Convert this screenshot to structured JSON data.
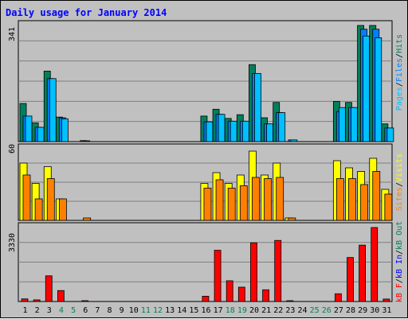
{
  "title": "Daily usage for January 2014",
  "colors": {
    "frame_bg": "#c0c0c0",
    "plot_bg": "#c0c0c0",
    "title": "#0000ff",
    "grid": "#808080",
    "weekday_tick": "#000000",
    "weekend_tick": "#00805c",
    "hits": "#00805c",
    "files": "#0080ff",
    "pages": "#00c0ff",
    "visits": "#ffff00",
    "sites": "#ff8000",
    "kb_out": "#00805c",
    "kb_in": "#0000ff",
    "kb_f": "#ff0000"
  },
  "chart_data": [
    {
      "type": "bar",
      "name": "hits-files-pages",
      "categories": [
        "1",
        "2",
        "3",
        "4",
        "5",
        "6",
        "7",
        "8",
        "9",
        "10",
        "11",
        "12",
        "13",
        "14",
        "15",
        "16",
        "17",
        "18",
        "19",
        "20",
        "21",
        "22",
        "23",
        "24",
        "25",
        "26",
        "27",
        "28",
        "29",
        "30",
        "31"
      ],
      "weekend_days": [
        "4",
        "5",
        "11",
        "12",
        "18",
        "19",
        "25",
        "26"
      ],
      "ymax_label": "341",
      "ylim": [
        0,
        341
      ],
      "legend": [
        "Pages",
        "Files",
        "Hits"
      ],
      "series": [
        {
          "name": "Hits",
          "values": [
            112,
            55,
            207,
            72,
            0,
            3,
            0,
            0,
            0,
            0,
            0,
            0,
            0,
            0,
            0,
            75,
            95,
            68,
            79,
            226,
            70,
            115,
            0,
            0,
            0,
            0,
            118,
            115,
            341,
            341,
            52
          ]
        },
        {
          "name": "Files",
          "values": [
            75,
            42,
            185,
            70,
            0,
            2,
            0,
            0,
            0,
            0,
            0,
            0,
            0,
            0,
            0,
            58,
            80,
            60,
            60,
            200,
            52,
            85,
            5,
            0,
            0,
            0,
            88,
            100,
            330,
            330,
            40
          ]
        },
        {
          "name": "Pages",
          "values": [
            75,
            42,
            185,
            67,
            0,
            0,
            0,
            0,
            0,
            0,
            0,
            0,
            0,
            0,
            0,
            58,
            80,
            60,
            60,
            200,
            52,
            85,
            5,
            0,
            0,
            0,
            100,
            100,
            310,
            305,
            40
          ]
        }
      ]
    },
    {
      "type": "bar",
      "name": "visits-sites",
      "categories": [
        "1",
        "2",
        "3",
        "4",
        "5",
        "6",
        "7",
        "8",
        "9",
        "10",
        "11",
        "12",
        "13",
        "14",
        "15",
        "16",
        "17",
        "18",
        "19",
        "20",
        "21",
        "22",
        "23",
        "24",
        "25",
        "26",
        "27",
        "28",
        "29",
        "30",
        "31"
      ],
      "ymax_label": "60",
      "ylim": [
        0,
        60
      ],
      "legend": [
        "Sites",
        "Visits"
      ],
      "series": [
        {
          "name": "Visits",
          "values": [
            48,
            31,
            45,
            18,
            0,
            0,
            0,
            0,
            0,
            0,
            0,
            0,
            0,
            0,
            0,
            31,
            40,
            31,
            38,
            58,
            38,
            48,
            2,
            0,
            0,
            0,
            50,
            44,
            41,
            52,
            26
          ]
        },
        {
          "name": "Sites",
          "values": [
            38,
            18,
            35,
            18,
            0,
            2,
            0,
            0,
            0,
            0,
            0,
            0,
            0,
            0,
            0,
            27,
            34,
            27,
            29,
            36,
            35,
            36,
            2,
            0,
            0,
            0,
            35,
            35,
            30,
            41,
            22
          ]
        }
      ]
    },
    {
      "type": "bar",
      "name": "kbytes",
      "categories": [
        "1",
        "2",
        "3",
        "4",
        "5",
        "6",
        "7",
        "8",
        "9",
        "10",
        "11",
        "12",
        "13",
        "14",
        "15",
        "16",
        "17",
        "18",
        "19",
        "20",
        "21",
        "22",
        "23",
        "24",
        "25",
        "26",
        "27",
        "28",
        "29",
        "30",
        "31"
      ],
      "ymax_label": "3330",
      "ylim": [
        0,
        3330
      ],
      "legend": [
        "kB F",
        "kB In",
        "kB Out"
      ],
      "series": [
        {
          "name": "kB F",
          "values": [
            117,
            73,
            1155,
            493,
            0,
            37,
            0,
            0,
            0,
            0,
            0,
            0,
            0,
            0,
            0,
            238,
            2306,
            933,
            645,
            2641,
            528,
            2749,
            37,
            0,
            0,
            0,
            349,
            1981,
            2537,
            3330,
            110
          ]
        }
      ]
    }
  ]
}
